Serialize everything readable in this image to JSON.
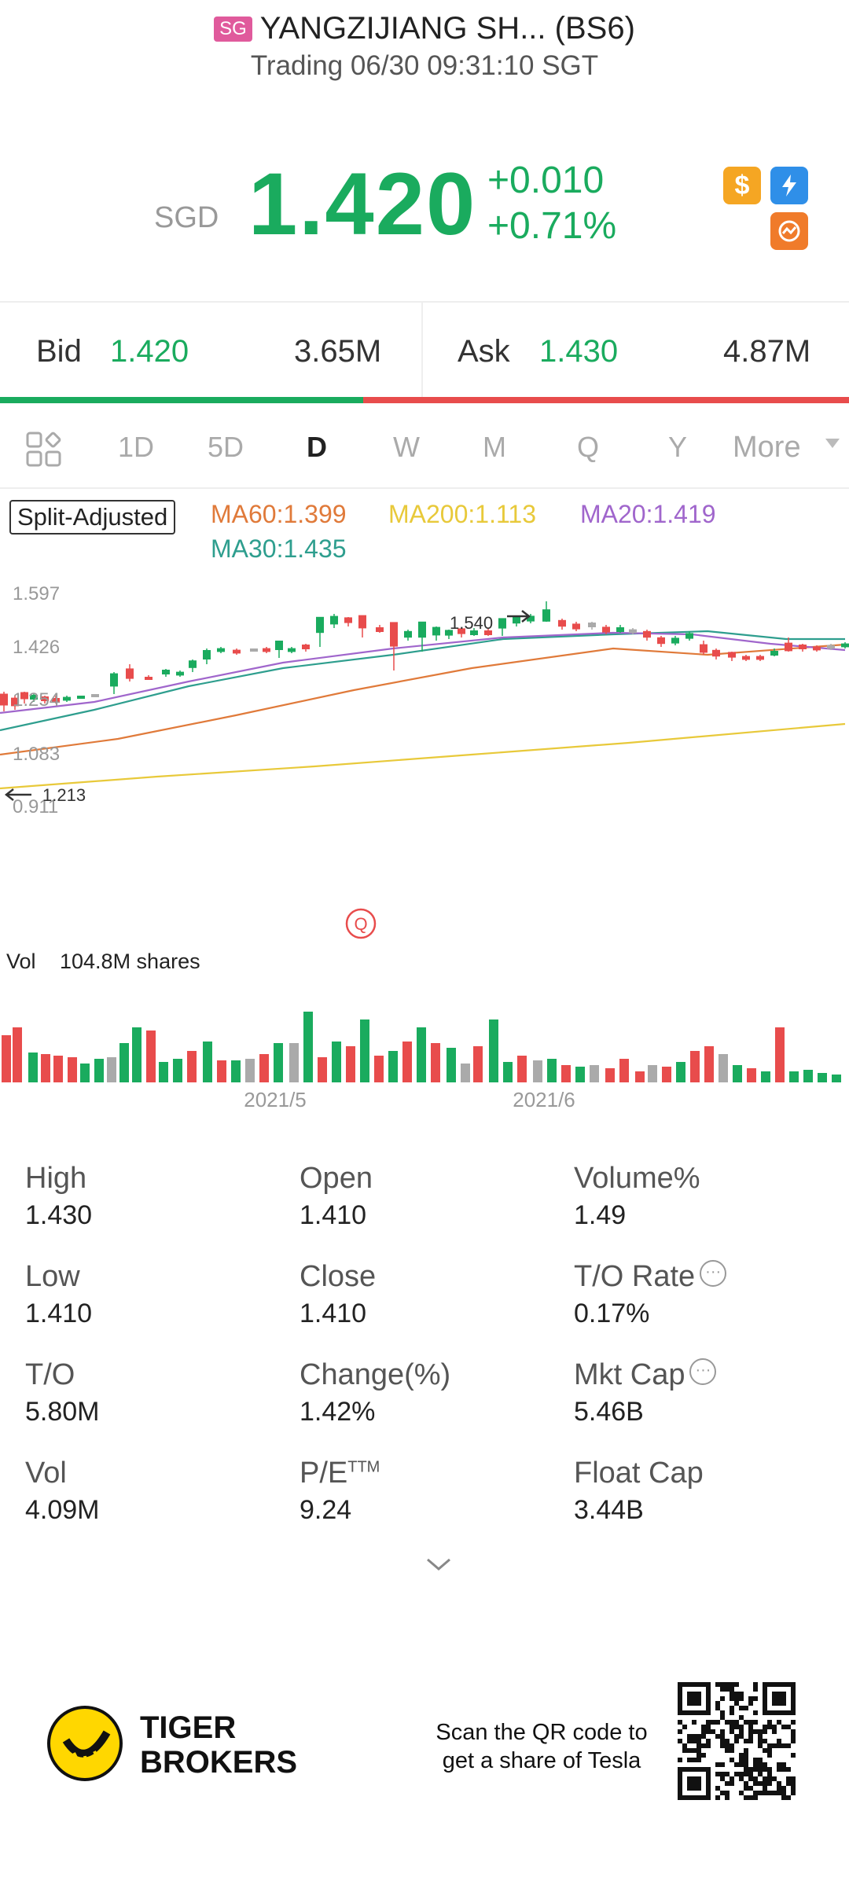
{
  "header": {
    "badge": "SG",
    "title": "YANGZIJIANG SH... (BS6)",
    "status": "Trading 06/30 09:31:10 SGT"
  },
  "quote": {
    "currency": "SGD",
    "price": "1.420",
    "change": "+0.010",
    "change_pct": "+0.71%"
  },
  "bidask": {
    "bid_label": "Bid",
    "bid_price": "1.420",
    "bid_vol": "3.65M",
    "ask_label": "Ask",
    "ask_price": "1.430",
    "ask_vol": "4.87M"
  },
  "tabs": [
    "1D",
    "5D",
    "D",
    "W",
    "M",
    "Q",
    "Y"
  ],
  "tab_more": "More",
  "active_tab": "D",
  "ma": {
    "split": "Split-Adjusted",
    "ma60": "MA60:1.399",
    "ma200": "MA200:1.113",
    "ma20": "MA20:1.419",
    "ma30": "MA30:1.435"
  },
  "colors": {
    "up": "#1aab5e",
    "down": "#e84c4c",
    "ma60": "#e07a3a",
    "ma200": "#e8c93a",
    "ma20": "#a066cc",
    "ma30": "#2e9e8e"
  },
  "chart_data": {
    "type": "candlestick",
    "y_ticks": [
      "1.597",
      "1.426",
      "1.254",
      "1.083",
      "0.911"
    ],
    "ylim": [
      0.911,
      1.597
    ],
    "high_marker": "1.540",
    "low_marker": "1.213",
    "event_marker": "Q",
    "vol_label": "Vol",
    "vol_value": "104.8M shares",
    "x_ticks": [
      "2021/5",
      "2021/6"
    ]
  },
  "stats": {
    "high": {
      "label": "High",
      "value": "1.430"
    },
    "open": {
      "label": "Open",
      "value": "1.410"
    },
    "volume_pct": {
      "label": "Volume%",
      "value": "1.49"
    },
    "low": {
      "label": "Low",
      "value": "1.410"
    },
    "close": {
      "label": "Close",
      "value": "1.410"
    },
    "to_rate": {
      "label": "T/O Rate",
      "value": "0.17%"
    },
    "to": {
      "label": "T/O",
      "value": "5.80M"
    },
    "change": {
      "label": "Change(%)",
      "value": "1.42%"
    },
    "mkt_cap": {
      "label": "Mkt Cap",
      "value": "5.46B"
    },
    "vol": {
      "label": "Vol",
      "value": "4.09M"
    },
    "pe": {
      "label": "P/E",
      "sup": "TTM",
      "value": "9.24"
    },
    "float_cap": {
      "label": "Float Cap",
      "value": "3.44B"
    }
  },
  "footer": {
    "brand_line1": "TIGER",
    "brand_line2": "BROKERS",
    "scan_line1": "Scan the QR code to",
    "scan_line2": "get a share of Tesla"
  }
}
